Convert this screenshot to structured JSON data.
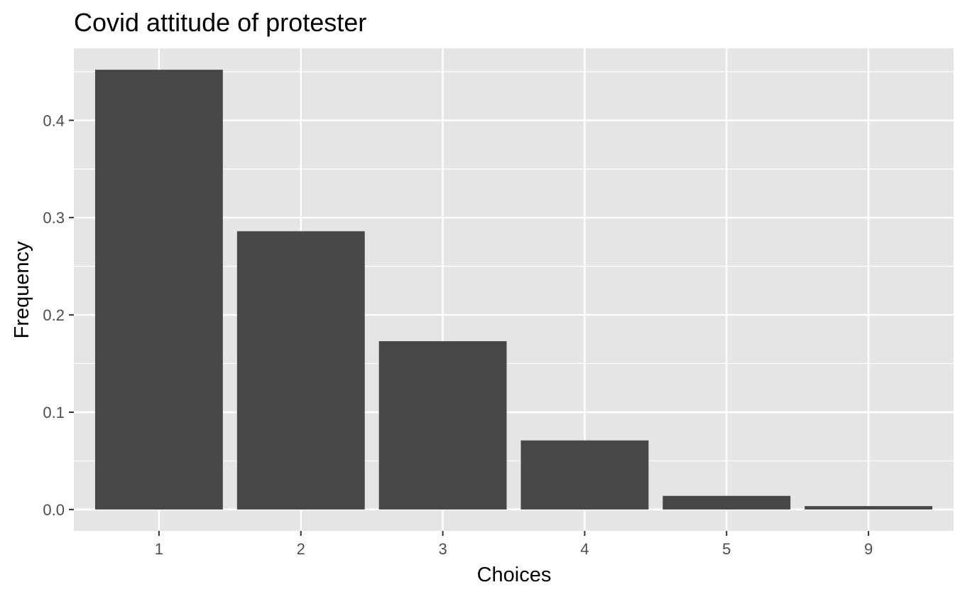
{
  "chart_data": {
    "type": "bar",
    "title": "Covid attitude of protester",
    "xlabel": "Choices",
    "ylabel": "Frequency",
    "categories": [
      "1",
      "2",
      "3",
      "4",
      "5",
      "9"
    ],
    "values": [
      0.452,
      0.286,
      0.173,
      0.071,
      0.014,
      0.0035
    ],
    "ylim": [
      -0.022,
      0.474
    ],
    "yticks": [
      0.0,
      0.1,
      0.2,
      0.3,
      0.4
    ],
    "ytick_labels": [
      "0.0",
      "0.1",
      "0.2",
      "0.3",
      "0.4"
    ],
    "grid": true,
    "legend": "none",
    "colors": {
      "bar": "#474747",
      "panel": "#e5e5e5",
      "grid_major": "#ffffff",
      "tick_text": "#4d4d4d",
      "tick_mark": "#333333"
    }
  }
}
